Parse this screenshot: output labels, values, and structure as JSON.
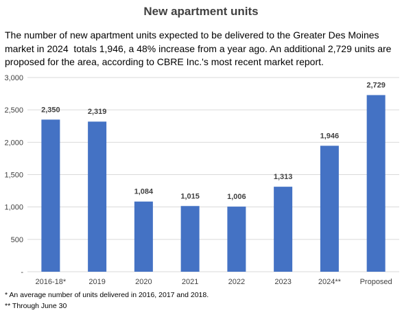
{
  "title": "New apartment units",
  "subtitle": "The number of new apartment units expected to be delivered to the Greater Des Moines market in 2024  totals 1,946, a 48% increase from a year ago. An additional 2,729 units are proposed for the area, according to CBRE Inc.'s most recent market report.",
  "footnotes": [
    "* An average number of units delivered in 2016, 2017 and 2018.",
    "** Through June 30"
  ],
  "colors": {
    "bar": "#4472C4",
    "grid": "#d9d9d9"
  },
  "chart_data": {
    "type": "bar",
    "categories": [
      "2016-18*",
      "2019",
      "2020",
      "2021",
      "2022",
      "2023",
      "2024**",
      "Proposed"
    ],
    "values": [
      2350,
      2319,
      1084,
      1015,
      1006,
      1313,
      1946,
      2729
    ],
    "value_labels": [
      "2,350",
      "2,319",
      "1,084",
      "1,015",
      "1,006",
      "1,313",
      "1,946",
      "2,729"
    ],
    "yticks": [
      0,
      500,
      1000,
      1500,
      2000,
      2500,
      3000
    ],
    "ytick_labels": [
      "-",
      "500",
      "1,000",
      "1,500",
      "2,000",
      "2,500",
      "3,000"
    ],
    "ylim": [
      0,
      3000
    ],
    "grid": true,
    "xlabel": "",
    "ylabel": ""
  }
}
